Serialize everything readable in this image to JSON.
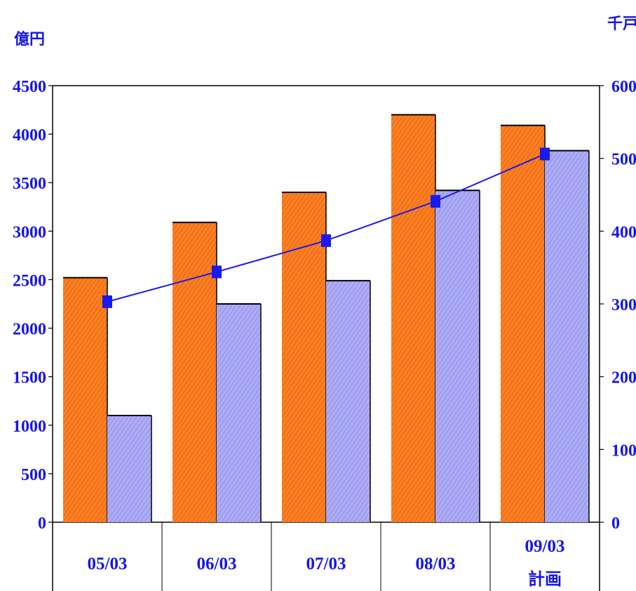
{
  "chart_data": {
    "type": "bar",
    "left_axis_unit": "億円",
    "right_axis_unit": "千戸",
    "categories": [
      {
        "label": "05/03",
        "sublabel": ""
      },
      {
        "label": "06/03",
        "sublabel": ""
      },
      {
        "label": "07/03",
        "sublabel": ""
      },
      {
        "label": "08/03",
        "sublabel": ""
      },
      {
        "label": "09/03",
        "sublabel": "計画"
      }
    ],
    "series": [
      {
        "type": "bar",
        "axis": "left",
        "color": "#ff7a1e",
        "values": [
          2520,
          3090,
          3400,
          4200,
          4090
        ]
      },
      {
        "type": "bar",
        "axis": "left",
        "color": "#a8a8f5",
        "values": [
          1100,
          2250,
          2490,
          3420,
          3830
        ]
      },
      {
        "type": "line",
        "axis": "right",
        "color": "#1a1af0",
        "marker": "square",
        "values": [
          303,
          344,
          387,
          441,
          506
        ]
      }
    ],
    "ylim_left": [
      0,
      4500
    ],
    "ylim_right": [
      0,
      600
    ],
    "yticks_left": [
      "0",
      "500",
      "1000",
      "1500",
      "2000",
      "2500",
      "3000",
      "3500",
      "4000",
      "4500"
    ],
    "yticks_right": [
      "0",
      "100",
      "200",
      "300",
      "400",
      "500",
      "600"
    ],
    "grid": false,
    "legend": "none"
  }
}
